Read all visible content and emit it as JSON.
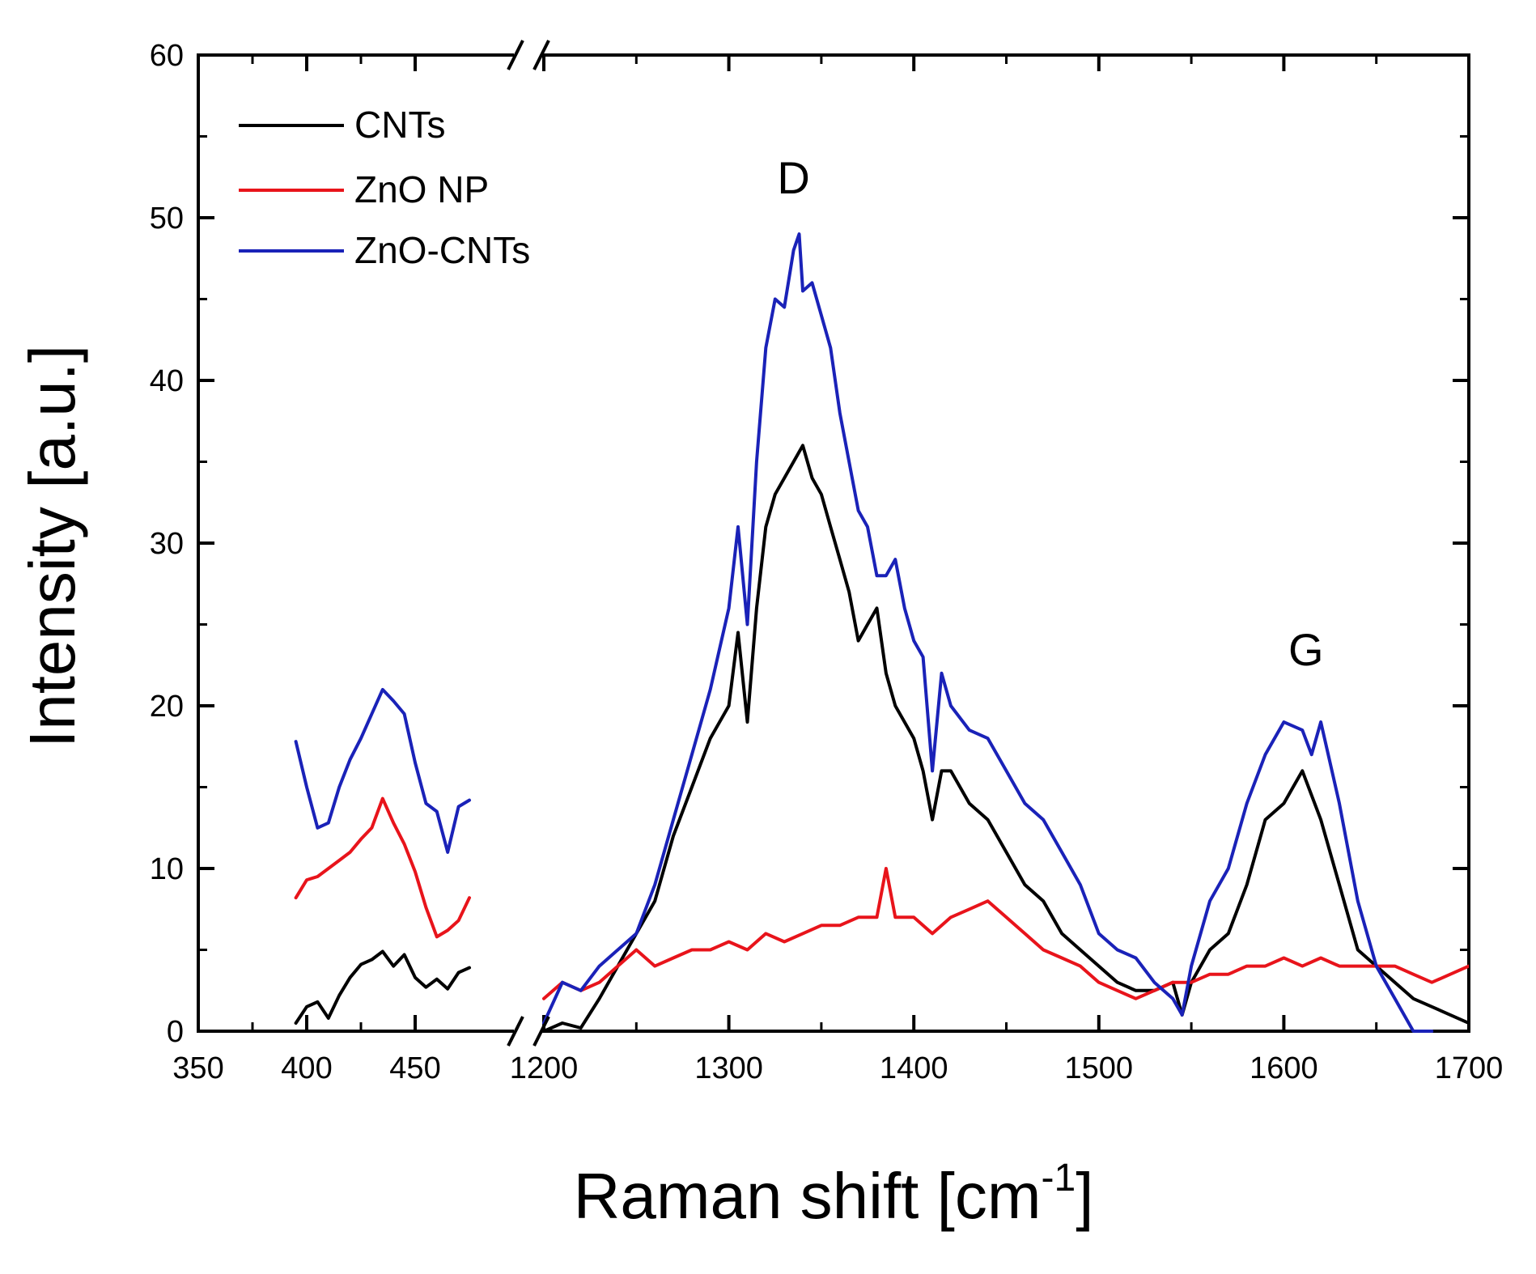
{
  "chart_data": {
    "type": "line",
    "title": "",
    "xlabel": "Raman shift [cm",
    "xlabel_superscript": "-1",
    "xlabel_close": "]",
    "ylabel": "Intensity [a.u.]",
    "xlim_segments": [
      [
        350,
        475
      ],
      [
        1200,
        1700
      ]
    ],
    "axis_break_marks": "//",
    "ylim": [
      0,
      60
    ],
    "yticks": [
      0,
      10,
      20,
      30,
      40,
      50,
      60
    ],
    "yticks_labels": [
      "0",
      "10",
      "20",
      "30",
      "40",
      "50",
      "60"
    ],
    "xticks_labels": [
      "350",
      "400",
      "450",
      "1200",
      "1300",
      "1400",
      "1500",
      "1600",
      "1700"
    ],
    "xticks_values": [
      350,
      400,
      450,
      1200,
      1300,
      1400,
      1500,
      1600,
      1700
    ],
    "legend_position": "top-left",
    "annotations": [
      {
        "text": "D",
        "x": 1335,
        "y": 51.5
      },
      {
        "text": "G",
        "x": 1612,
        "y": 22.5
      }
    ],
    "series": [
      {
        "name": "CNTs",
        "color": "#000000",
        "segments": [
          {
            "x": [
              395,
              400,
              405,
              410,
              415,
              420,
              425,
              430,
              435,
              440,
              445,
              450,
              455,
              460,
              465,
              470,
              475
            ],
            "y": [
              0.5,
              1.5,
              1.8,
              0.8,
              2.2,
              3.3,
              4.1,
              4.4,
              4.9,
              4.0,
              4.7,
              3.3,
              2.7,
              3.2,
              2.6,
              3.6,
              3.9
            ]
          },
          {
            "x": [
              1200,
              1210,
              1220,
              1230,
              1240,
              1250,
              1260,
              1265,
              1270,
              1280,
              1290,
              1300,
              1305,
              1310,
              1315,
              1320,
              1325,
              1330,
              1335,
              1340,
              1345,
              1350,
              1355,
              1360,
              1365,
              1370,
              1375,
              1380,
              1385,
              1390,
              1400,
              1405,
              1410,
              1415,
              1420,
              1430,
              1440,
              1450,
              1460,
              1470,
              1480,
              1490,
              1500,
              1510,
              1520,
              1530,
              1540,
              1545,
              1550,
              1560,
              1570,
              1580,
              1590,
              1600,
              1605,
              1610,
              1620,
              1630,
              1640,
              1650,
              1660,
              1670,
              1680,
              1690,
              1700
            ],
            "y": [
              0,
              0.5,
              0.2,
              2,
              4,
              6,
              8,
              10,
              12,
              15,
              18,
              20,
              24.5,
              19,
              26,
              31,
              33,
              34,
              35,
              36,
              34,
              33,
              31,
              29,
              27,
              24,
              25,
              26,
              22,
              20,
              18,
              16,
              13,
              16,
              16,
              14,
              13,
              11,
              9,
              8,
              6,
              5,
              4,
              3,
              2.5,
              2.5,
              3,
              1,
              3,
              5,
              6,
              9,
              13,
              14,
              15,
              16,
              13,
              9,
              5,
              4,
              3,
              2,
              1.5,
              1,
              0.5
            ]
          }
        ]
      },
      {
        "name": "ZnO NP",
        "color": "#e8141b",
        "segments": [
          {
            "x": [
              395,
              400,
              405,
              410,
              415,
              420,
              425,
              430,
              435,
              440,
              445,
              450,
              455,
              460,
              465,
              470,
              475
            ],
            "y": [
              8.2,
              9.3,
              9.5,
              10.0,
              10.5,
              11.0,
              11.8,
              12.5,
              14.3,
              12.8,
              11.5,
              9.8,
              7.6,
              5.8,
              6.2,
              6.8,
              8.2
            ]
          },
          {
            "x": [
              1200,
              1210,
              1220,
              1230,
              1240,
              1250,
              1260,
              1270,
              1280,
              1290,
              1300,
              1310,
              1320,
              1330,
              1340,
              1350,
              1360,
              1370,
              1380,
              1385,
              1390,
              1400,
              1410,
              1420,
              1430,
              1440,
              1450,
              1460,
              1470,
              1480,
              1490,
              1500,
              1510,
              1520,
              1530,
              1540,
              1550,
              1560,
              1570,
              1580,
              1590,
              1600,
              1610,
              1620,
              1630,
              1640,
              1650,
              1660,
              1670,
              1680,
              1690,
              1700
            ],
            "y": [
              2,
              3,
              2.5,
              3,
              4,
              5,
              4,
              4.5,
              5,
              5,
              5.5,
              5,
              6,
              5.5,
              6,
              6.5,
              6.5,
              7,
              7,
              10,
              7,
              7,
              6,
              7,
              7.5,
              8,
              7,
              6,
              5,
              4.5,
              4,
              3,
              2.5,
              2,
              2.5,
              3,
              3,
              3.5,
              3.5,
              4,
              4,
              4.5,
              4,
              4.5,
              4,
              4,
              4,
              4,
              3.5,
              3,
              3.5,
              4
            ]
          }
        ]
      },
      {
        "name": "ZnO-CNTs",
        "color": "#1a22b8",
        "segments": [
          {
            "x": [
              395,
              400,
              405,
              410,
              415,
              420,
              425,
              430,
              435,
              440,
              445,
              450,
              455,
              460,
              465,
              470,
              475
            ],
            "y": [
              17.8,
              15.0,
              12.5,
              12.8,
              15.0,
              16.7,
              18.0,
              19.5,
              21.0,
              20.3,
              19.5,
              16.5,
              14.0,
              13.5,
              11.0,
              13.8,
              14.2
            ]
          },
          {
            "x": [
              1200,
              1210,
              1220,
              1230,
              1240,
              1250,
              1260,
              1270,
              1280,
              1290,
              1300,
              1305,
              1310,
              1315,
              1320,
              1325,
              1330,
              1335,
              1338,
              1340,
              1345,
              1350,
              1355,
              1360,
              1365,
              1370,
              1375,
              1380,
              1385,
              1390,
              1395,
              1400,
              1405,
              1410,
              1415,
              1420,
              1430,
              1440,
              1450,
              1460,
              1470,
              1480,
              1490,
              1500,
              1510,
              1520,
              1530,
              1540,
              1545,
              1550,
              1560,
              1570,
              1580,
              1590,
              1600,
              1610,
              1615,
              1620,
              1630,
              1640,
              1650,
              1660,
              1670,
              1680
            ],
            "y": [
              0.5,
              3,
              2.5,
              4,
              5,
              6,
              9,
              13,
              17,
              21,
              26,
              31,
              25,
              35,
              42,
              45,
              44.5,
              48,
              49,
              45.5,
              46,
              44,
              42,
              38,
              35,
              32,
              31,
              28,
              28,
              29,
              26,
              24,
              23,
              16,
              22,
              20,
              18.5,
              18,
              16,
              14,
              13,
              11,
              9,
              6,
              5,
              4.5,
              3,
              2,
              1,
              4,
              8,
              10,
              14,
              17,
              19,
              18.5,
              17,
              19,
              14,
              8,
              4,
              2,
              0,
              0
            ]
          }
        ]
      }
    ]
  }
}
